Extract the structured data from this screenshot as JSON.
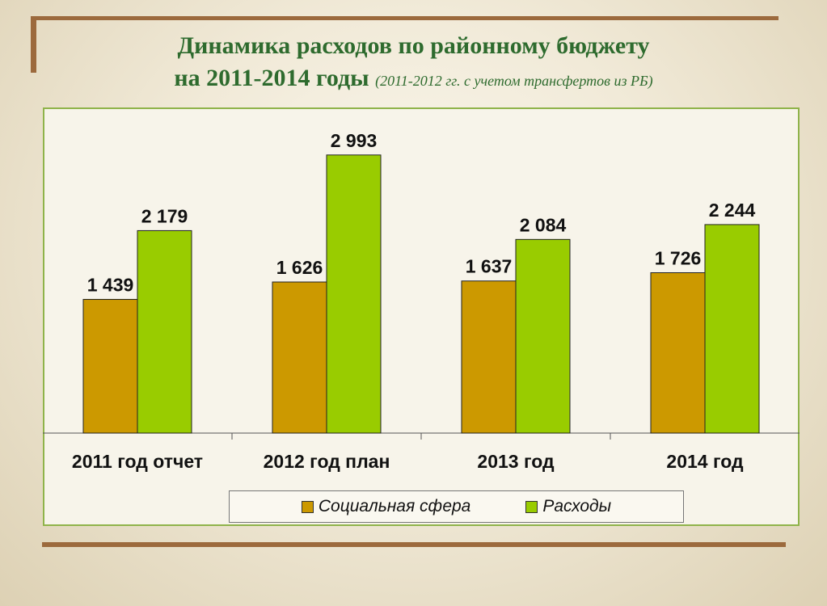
{
  "title": {
    "line1": "Динамика расходов по районному бюджету",
    "line2": "на 2011-2014 годы",
    "subtitle": "(2011-2012 гг. с учетом трансфертов из РБ)"
  },
  "colors": {
    "series1": "#cc9900",
    "series2": "#99cc00",
    "frame": "#8fb34a",
    "accent": "#9c6a3d"
  },
  "chart_data": {
    "type": "bar",
    "categories": [
      "2011 год отчет",
      "2012 год план",
      "2013 год",
      "2014 год"
    ],
    "series": [
      {
        "name": "Социальная сфера",
        "values": [
          1439,
          1626,
          1637,
          1726
        ],
        "labels": [
          "1 439",
          "1 626",
          "1 637",
          "1 726"
        ],
        "color": "#cc9900"
      },
      {
        "name": "Расходы",
        "values": [
          2179,
          2993,
          2084,
          2244
        ],
        "labels": [
          "2 179",
          "2 993",
          "2 084",
          "2 244"
        ],
        "color": "#99cc00"
      }
    ],
    "ylim": [
      0,
      3000
    ],
    "grid": false,
    "legend_position": "bottom"
  }
}
